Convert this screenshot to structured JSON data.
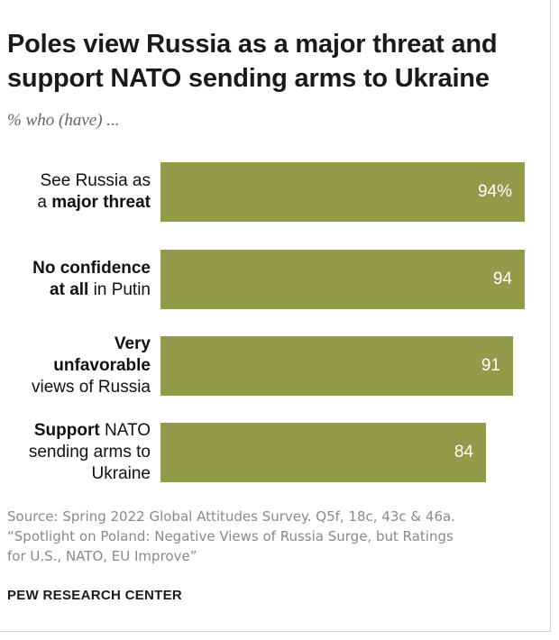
{
  "title_line1": "Poles view Russia as a major threat and",
  "title_line2": "support NATO sending arms to Ukraine",
  "subtitle": "% who (have) ...",
  "chart_data": {
    "type": "bar",
    "orientation": "horizontal",
    "categories": [
      "See Russia as a major threat",
      "No confidence at all in Putin",
      "Very unfavorable views of Russia",
      "Support NATO sending arms to Ukraine"
    ],
    "values": [
      94,
      94,
      91,
      84
    ],
    "value_labels": [
      "94%",
      "94",
      "91",
      "84"
    ],
    "bar_color": "#939b4b",
    "label_parts": [
      [
        {
          "text": "See Russia as",
          "bold": false,
          "br": true
        },
        {
          "text": "a ",
          "bold": false
        },
        {
          "text": "major threat",
          "bold": true
        }
      ],
      [
        {
          "text": "No confidence",
          "bold": true,
          "br": true
        },
        {
          "text": "at all",
          "bold": true
        },
        {
          "text": " in Putin",
          "bold": false
        }
      ],
      [
        {
          "text": "Very",
          "bold": true,
          "br": true
        },
        {
          "text": "unfavorable",
          "bold": true,
          "br": true
        },
        {
          "text": "views of Russia",
          "bold": false
        }
      ],
      [
        {
          "text": "Support",
          "bold": true
        },
        {
          "text": " NATO",
          "bold": false,
          "br": true
        },
        {
          "text": "sending arms to",
          "bold": false,
          "br": true
        },
        {
          "text": "Ukraine",
          "bold": false
        }
      ]
    ]
  },
  "source_line1": "Source: Spring 2022 Global Attitudes Survey. Q5f, 18c, 43c & 46a.",
  "source_line2": "“Spotlight on Poland: Negative Views of Russia Surge, but Ratings",
  "source_line3": "for U.S., NATO, EU Improve”",
  "organization": "PEW RESEARCH CENTER"
}
